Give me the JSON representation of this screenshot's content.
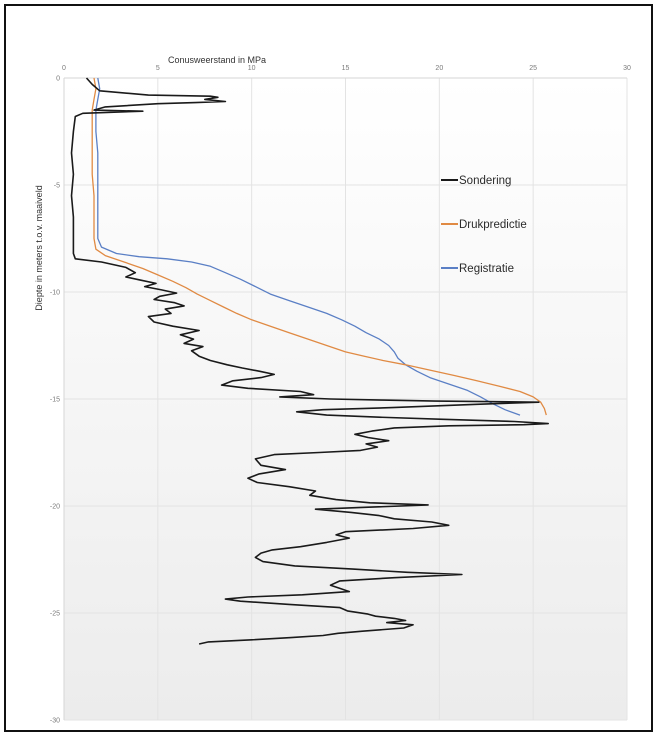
{
  "chart_data": {
    "type": "line",
    "title": "",
    "xlabel": "Conusweerstand in MPa",
    "ylabel": "Diepte in meters t.o.v. maaiveld",
    "x_axis_position": "top",
    "y_axis_inverted": true,
    "xlim": [
      0,
      30
    ],
    "ylim": [
      0,
      30
    ],
    "x_ticks": [
      "0",
      "5",
      "10",
      "15",
      "20",
      "25",
      "30"
    ],
    "y_ticks": [
      "0",
      "-5",
      "-10",
      "-15",
      "-20",
      "-25",
      "-30"
    ],
    "grid": true,
    "legend_position": "right",
    "series": [
      {
        "name": "Sondering",
        "color": "#1a1a1a",
        "points": [
          [
            1.2,
            0.0
          ],
          [
            1.5,
            0.3
          ],
          [
            1.9,
            0.6
          ],
          [
            4.5,
            0.8
          ],
          [
            7.8,
            0.85
          ],
          [
            8.2,
            0.9
          ],
          [
            7.5,
            1.0
          ],
          [
            8.6,
            1.1
          ],
          [
            7.0,
            1.15
          ],
          [
            5.0,
            1.2
          ],
          [
            2.2,
            1.35
          ],
          [
            1.6,
            1.5
          ],
          [
            4.2,
            1.55
          ],
          [
            1.0,
            1.65
          ],
          [
            0.6,
            1.8
          ],
          [
            0.5,
            2.5
          ],
          [
            0.4,
            3.5
          ],
          [
            0.5,
            4.5
          ],
          [
            0.4,
            5.5
          ],
          [
            0.5,
            6.5
          ],
          [
            0.5,
            7.5
          ],
          [
            0.5,
            8.2
          ],
          [
            0.6,
            8.45
          ],
          [
            2.0,
            8.6
          ],
          [
            3.3,
            8.85
          ],
          [
            3.8,
            9.1
          ],
          [
            3.3,
            9.3
          ],
          [
            4.1,
            9.45
          ],
          [
            4.9,
            9.6
          ],
          [
            4.3,
            9.75
          ],
          [
            5.2,
            9.9
          ],
          [
            6.0,
            10.05
          ],
          [
            5.1,
            10.2
          ],
          [
            4.8,
            10.35
          ],
          [
            5.9,
            10.5
          ],
          [
            6.4,
            10.65
          ],
          [
            5.4,
            10.8
          ],
          [
            5.7,
            11.0
          ],
          [
            4.5,
            11.15
          ],
          [
            4.8,
            11.4
          ],
          [
            5.8,
            11.6
          ],
          [
            7.2,
            11.8
          ],
          [
            6.2,
            12.0
          ],
          [
            6.9,
            12.2
          ],
          [
            6.4,
            12.4
          ],
          [
            7.4,
            12.55
          ],
          [
            6.8,
            12.75
          ],
          [
            7.2,
            13.0
          ],
          [
            7.8,
            13.2
          ],
          [
            8.7,
            13.4
          ],
          [
            9.5,
            13.55
          ],
          [
            10.4,
            13.7
          ],
          [
            11.2,
            13.85
          ],
          [
            10.5,
            14.0
          ],
          [
            9.0,
            14.15
          ],
          [
            8.4,
            14.35
          ],
          [
            9.8,
            14.5
          ],
          [
            12.6,
            14.65
          ],
          [
            13.3,
            14.8
          ],
          [
            11.5,
            14.9
          ],
          [
            14.2,
            15.0
          ],
          [
            17.0,
            15.05
          ],
          [
            19.8,
            15.1
          ],
          [
            22.5,
            15.12
          ],
          [
            25.3,
            15.15
          ],
          [
            22.0,
            15.25
          ],
          [
            17.5,
            15.4
          ],
          [
            13.8,
            15.5
          ],
          [
            12.4,
            15.6
          ],
          [
            14.0,
            15.75
          ],
          [
            16.8,
            15.85
          ],
          [
            20.2,
            15.95
          ],
          [
            24.0,
            16.05
          ],
          [
            25.8,
            16.15
          ],
          [
            24.5,
            16.2
          ],
          [
            20.5,
            16.25
          ],
          [
            17.6,
            16.35
          ],
          [
            16.4,
            16.5
          ],
          [
            15.5,
            16.65
          ],
          [
            16.2,
            16.8
          ],
          [
            17.3,
            16.95
          ],
          [
            16.1,
            17.1
          ],
          [
            16.7,
            17.25
          ],
          [
            15.8,
            17.4
          ],
          [
            13.6,
            17.5
          ],
          [
            11.2,
            17.6
          ],
          [
            10.2,
            17.8
          ],
          [
            10.5,
            18.1
          ],
          [
            11.8,
            18.3
          ],
          [
            10.4,
            18.5
          ],
          [
            9.8,
            18.7
          ],
          [
            10.3,
            18.9
          ],
          [
            12.0,
            19.1
          ],
          [
            13.4,
            19.3
          ],
          [
            13.1,
            19.5
          ],
          [
            14.5,
            19.7
          ],
          [
            16.3,
            19.85
          ],
          [
            19.4,
            19.95
          ],
          [
            16.4,
            20.05
          ],
          [
            13.4,
            20.15
          ],
          [
            15.3,
            20.3
          ],
          [
            16.8,
            20.45
          ],
          [
            17.6,
            20.6
          ],
          [
            19.6,
            20.75
          ],
          [
            20.5,
            20.9
          ],
          [
            18.6,
            21.05
          ],
          [
            15.0,
            21.2
          ],
          [
            14.5,
            21.35
          ],
          [
            15.2,
            21.5
          ],
          [
            14.0,
            21.7
          ],
          [
            12.6,
            21.9
          ],
          [
            11.1,
            22.05
          ],
          [
            10.5,
            22.2
          ],
          [
            10.2,
            22.4
          ],
          [
            10.6,
            22.6
          ],
          [
            12.3,
            22.8
          ],
          [
            15.4,
            22.95
          ],
          [
            18.3,
            23.1
          ],
          [
            21.2,
            23.2
          ],
          [
            17.6,
            23.35
          ],
          [
            14.7,
            23.5
          ],
          [
            14.2,
            23.7
          ],
          [
            14.7,
            23.85
          ],
          [
            15.2,
            24.0
          ],
          [
            12.7,
            24.15
          ],
          [
            9.8,
            24.25
          ],
          [
            8.6,
            24.35
          ],
          [
            9.4,
            24.45
          ],
          [
            12.0,
            24.6
          ],
          [
            14.7,
            24.75
          ],
          [
            15.1,
            24.9
          ],
          [
            16.2,
            25.05
          ],
          [
            16.6,
            25.15
          ],
          [
            17.6,
            25.25
          ],
          [
            18.2,
            25.35
          ],
          [
            17.2,
            25.45
          ],
          [
            18.6,
            25.55
          ],
          [
            18.1,
            25.7
          ],
          [
            15.9,
            25.85
          ],
          [
            14.6,
            25.95
          ],
          [
            13.8,
            26.05
          ],
          [
            12.1,
            26.15
          ],
          [
            10.0,
            26.25
          ],
          [
            7.7,
            26.35
          ],
          [
            7.2,
            26.45
          ]
        ]
      },
      {
        "name": "Drukpredictie",
        "color": "#e08a43",
        "points": [
          [
            1.6,
            0.0
          ],
          [
            1.7,
            0.5
          ],
          [
            1.6,
            1.0
          ],
          [
            1.5,
            1.5
          ],
          [
            1.5,
            2.5
          ],
          [
            1.5,
            3.5
          ],
          [
            1.5,
            4.5
          ],
          [
            1.6,
            5.5
          ],
          [
            1.6,
            6.5
          ],
          [
            1.6,
            7.5
          ],
          [
            1.7,
            8.0
          ],
          [
            2.2,
            8.3
          ],
          [
            3.2,
            8.6
          ],
          [
            4.2,
            8.9
          ],
          [
            5.0,
            9.2
          ],
          [
            5.8,
            9.5
          ],
          [
            6.5,
            9.8
          ],
          [
            7.1,
            10.1
          ],
          [
            7.8,
            10.4
          ],
          [
            8.5,
            10.7
          ],
          [
            9.2,
            11.0
          ],
          [
            10.0,
            11.3
          ],
          [
            11.0,
            11.6
          ],
          [
            12.0,
            11.9
          ],
          [
            13.0,
            12.2
          ],
          [
            14.0,
            12.5
          ],
          [
            15.0,
            12.8
          ],
          [
            16.0,
            13.0
          ],
          [
            17.0,
            13.2
          ],
          [
            18.2,
            13.4
          ],
          [
            19.5,
            13.65
          ],
          [
            20.8,
            13.9
          ],
          [
            22.0,
            14.15
          ],
          [
            23.2,
            14.4
          ],
          [
            24.3,
            14.65
          ],
          [
            25.0,
            14.9
          ],
          [
            25.4,
            15.15
          ],
          [
            25.6,
            15.45
          ],
          [
            25.7,
            15.75
          ]
        ]
      },
      {
        "name": "Registratie",
        "color": "#5a7fc5",
        "points": [
          [
            1.8,
            0.0
          ],
          [
            1.9,
            0.5
          ],
          [
            1.8,
            1.0
          ],
          [
            1.7,
            1.5
          ],
          [
            1.7,
            2.5
          ],
          [
            1.8,
            3.5
          ],
          [
            1.8,
            4.5
          ],
          [
            1.8,
            5.5
          ],
          [
            1.8,
            6.5
          ],
          [
            1.8,
            7.5
          ],
          [
            2.0,
            7.9
          ],
          [
            2.8,
            8.2
          ],
          [
            4.0,
            8.35
          ],
          [
            5.5,
            8.45
          ],
          [
            6.8,
            8.6
          ],
          [
            7.8,
            8.8
          ],
          [
            8.6,
            9.1
          ],
          [
            9.4,
            9.4
          ],
          [
            10.2,
            9.75
          ],
          [
            11.0,
            10.1
          ],
          [
            12.0,
            10.4
          ],
          [
            13.0,
            10.7
          ],
          [
            14.0,
            11.0
          ],
          [
            14.8,
            11.3
          ],
          [
            15.5,
            11.6
          ],
          [
            16.1,
            11.9
          ],
          [
            16.8,
            12.2
          ],
          [
            17.3,
            12.5
          ],
          [
            17.6,
            12.8
          ],
          [
            17.8,
            13.1
          ],
          [
            18.2,
            13.4
          ],
          [
            18.8,
            13.7
          ],
          [
            19.5,
            14.0
          ],
          [
            20.5,
            14.3
          ],
          [
            21.5,
            14.6
          ],
          [
            22.2,
            14.9
          ],
          [
            22.8,
            15.2
          ],
          [
            23.5,
            15.5
          ],
          [
            24.3,
            15.75
          ]
        ]
      }
    ]
  }
}
